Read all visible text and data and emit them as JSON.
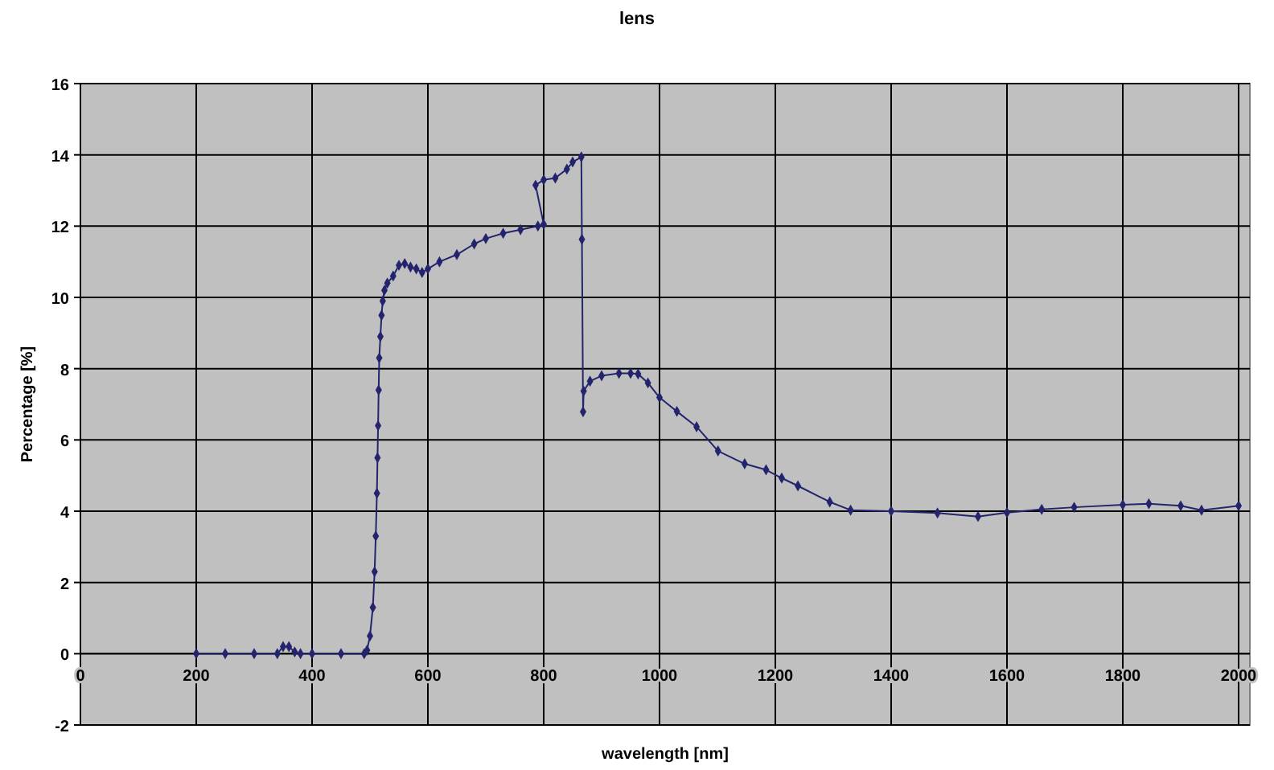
{
  "chart_data": {
    "type": "line",
    "title": "lens",
    "xlabel": "wavelength [nm]",
    "ylabel": "Percentage [%]",
    "xlim": [
      0,
      2000
    ],
    "ylim": [
      -2,
      16
    ],
    "xticks": [
      0,
      200,
      400,
      600,
      800,
      1000,
      1200,
      1400,
      1600,
      1800,
      2000
    ],
    "yticks": [
      -2,
      0,
      2,
      4,
      6,
      8,
      10,
      12,
      14,
      16
    ],
    "grid": true,
    "marker": "diamond",
    "line_style": "solid",
    "series": [
      {
        "color": "#24246e",
        "x": [
          200,
          250,
          300,
          340,
          350,
          360,
          370,
          380,
          400,
          450,
          490,
          495,
          500,
          505,
          508,
          510,
          512,
          513,
          514,
          515,
          516,
          518,
          520,
          522,
          525,
          530,
          540,
          550,
          560,
          570,
          580,
          590,
          600,
          620,
          650,
          680,
          700,
          730,
          760,
          790,
          800,
          786,
          800,
          820,
          840,
          850,
          865,
          866,
          868,
          869,
          880,
          900,
          930,
          950,
          963,
          980,
          1000,
          1030,
          1064,
          1101,
          1147,
          1184,
          1211,
          1239,
          1294,
          1330,
          1400,
          1480,
          1550,
          1600,
          1660,
          1716,
          1800,
          1845,
          1900,
          1936,
          2000
        ],
        "values": [
          0,
          0,
          0,
          0,
          0.2,
          0.2,
          0.05,
          0,
          0,
          0,
          0,
          0.1,
          0.5,
          1.3,
          2.3,
          3.3,
          4.5,
          5.5,
          6.4,
          7.4,
          8.3,
          8.9,
          9.5,
          9.9,
          10.2,
          10.4,
          10.6,
          10.9,
          10.95,
          10.85,
          10.8,
          10.7,
          10.8,
          11,
          11.2,
          11.5,
          11.65,
          11.8,
          11.9,
          12,
          12.05,
          13.15,
          13.3,
          13.35,
          13.6,
          13.8,
          13.94,
          11.63,
          6.79,
          7.37,
          7.65,
          7.8,
          7.87,
          7.87,
          7.85,
          7.6,
          7.19,
          6.8,
          6.37,
          5.69,
          5.33,
          5.16,
          4.93,
          4.71,
          4.26,
          4.03,
          4.0,
          3.95,
          3.85,
          3.96,
          4.05,
          4.11,
          4.18,
          4.21,
          4.15,
          4.03,
          4.15
        ]
      }
    ]
  }
}
